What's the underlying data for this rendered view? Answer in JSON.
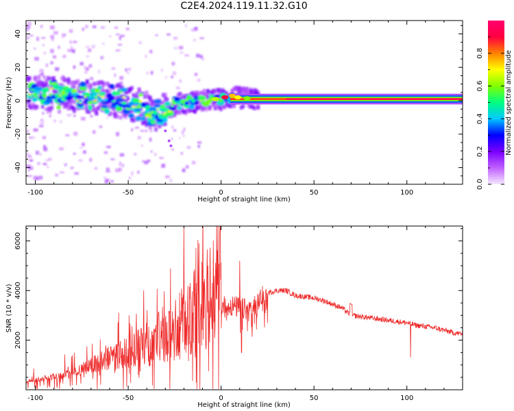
{
  "title": "C2E4.2024.119.11.32.G10",
  "colors": {
    "snr_line": "#ee2a2a",
    "colormap": [
      "#f4e8ff",
      "#c060ff",
      "#7a00ff",
      "#0000ff",
      "#00c8ff",
      "#00ff80",
      "#80ff00",
      "#ffff00",
      "#ff8000",
      "#ff0040",
      "#ff0070"
    ]
  },
  "chart_data": [
    {
      "type": "heatmap",
      "xlabel": "Height of straight line (km)",
      "ylabel": "Frequency (Hz)",
      "xlim": [
        -105,
        130
      ],
      "ylim": [
        -50,
        48
      ],
      "xticks": [
        -100,
        -50,
        0,
        50,
        100
      ],
      "yticks": [
        -40,
        -20,
        0,
        20,
        40
      ],
      "colorbar": {
        "label": "Normalized spectral amplitude",
        "range": [
          0.0,
          1.0
        ],
        "ticks": [
          0.0,
          0.2,
          0.4,
          0.6,
          0.8
        ]
      },
      "ridge": {
        "description_points_km_hz": [
          [
            -100,
            4
          ],
          [
            -80,
            3
          ],
          [
            -60,
            1
          ],
          [
            -45,
            -3
          ],
          [
            -35,
            -8
          ],
          [
            -25,
            -2
          ],
          [
            -10,
            0
          ],
          [
            0,
            1
          ],
          [
            5,
            2
          ],
          [
            20,
            1
          ],
          [
            130,
            1
          ]
        ],
        "amplitude_start": 0.3,
        "amplitude_end": 0.95
      }
    },
    {
      "type": "line",
      "xlabel": "Height of straight line (km)",
      "ylabel": "SNR (10 * v/v)",
      "xlim": [
        -105,
        130
      ],
      "ylim": [
        0,
        6600
      ],
      "xticks": [
        -100,
        -50,
        0,
        50,
        100
      ],
      "yticks": [
        2000,
        4000,
        6000
      ],
      "envelope": {
        "x": [
          -105,
          -95,
          -85,
          -75,
          -65,
          -55,
          -45,
          -35,
          -25,
          -20,
          -15,
          -10,
          -5,
          0,
          5,
          10,
          15,
          20,
          25,
          30,
          35,
          40,
          45,
          50,
          55,
          60,
          65,
          70,
          75,
          80,
          85,
          90,
          95,
          100,
          105,
          110,
          115,
          120,
          125,
          130
        ],
        "values": [
          300,
          400,
          500,
          700,
          900,
          1100,
          1300,
          1500,
          1800,
          2000,
          2200,
          2500,
          3000,
          3300,
          3400,
          3300,
          3200,
          3600,
          3900,
          4000,
          4000,
          3800,
          3750,
          3700,
          3600,
          3450,
          3300,
          3000,
          2950,
          2900,
          2850,
          2800,
          2750,
          2700,
          2600,
          2550,
          2500,
          2400,
          2300,
          2250
        ]
      },
      "spikes": [
        {
          "x": -20,
          "value": 6600
        },
        {
          "x": -12,
          "value": 5900
        },
        {
          "x": 10,
          "value": 5200
        },
        {
          "x": 11,
          "value": 1500
        },
        {
          "x": 102,
          "value": 1300
        }
      ]
    }
  ]
}
